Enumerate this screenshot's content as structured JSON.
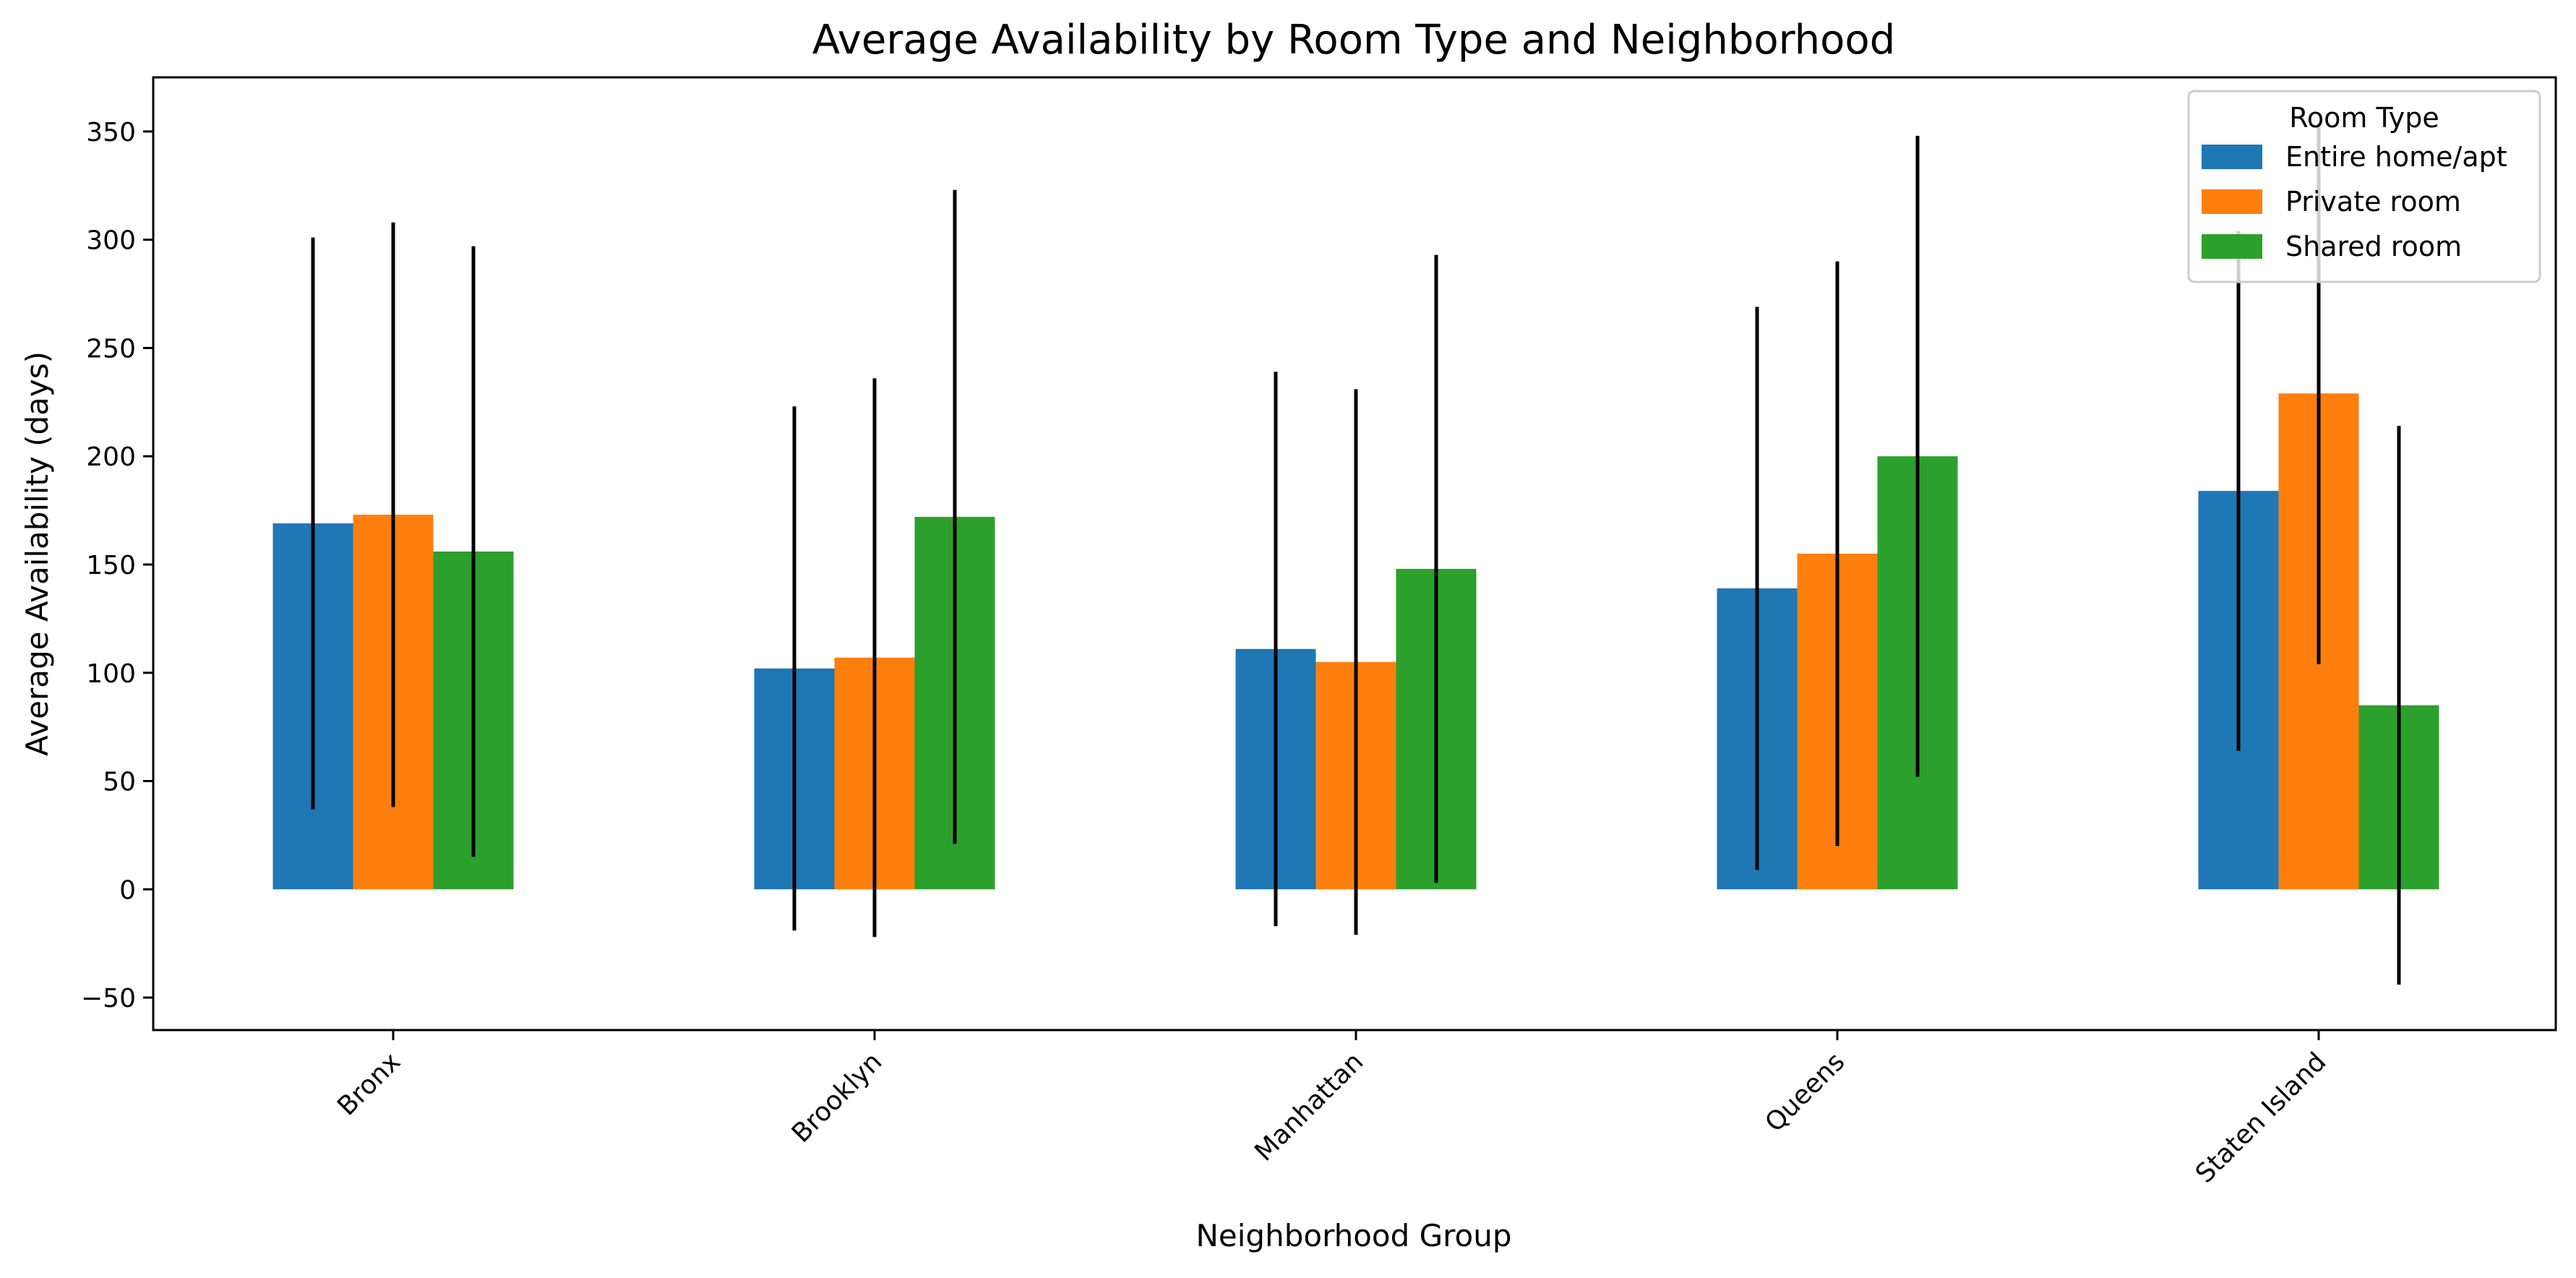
{
  "chart_data": {
    "type": "bar",
    "title": "Average Availability by Room Type and Neighborhood",
    "xlabel": "Neighborhood Group",
    "ylabel": "Average Availability (days)",
    "categories": [
      "Bronx",
      "Brooklyn",
      "Manhattan",
      "Queens",
      "Staten Island"
    ],
    "ylim": [
      -65,
      375
    ],
    "yticks": [
      -50,
      0,
      50,
      100,
      150,
      200,
      250,
      300,
      350
    ],
    "ytick_labels": [
      "−50",
      "0",
      "50",
      "100",
      "150",
      "200",
      "250",
      "300",
      "350"
    ],
    "grid": false,
    "legend": {
      "title": "Room Type",
      "placement": "top-right"
    },
    "series": [
      {
        "name": "Entire home/apt",
        "color": "#1f77b4",
        "values": [
          169,
          102,
          111,
          139,
          184
        ],
        "error": [
          132,
          121,
          128,
          130,
          120
        ]
      },
      {
        "name": "Private room",
        "color": "#ff7f0e",
        "values": [
          173,
          107,
          105,
          155,
          229
        ],
        "error": [
          135,
          129,
          126,
          135,
          125
        ]
      },
      {
        "name": "Shared room",
        "color": "#2ca02c",
        "values": [
          156,
          172,
          148,
          200,
          85
        ],
        "error": [
          141,
          151,
          145,
          148,
          129
        ]
      }
    ]
  }
}
